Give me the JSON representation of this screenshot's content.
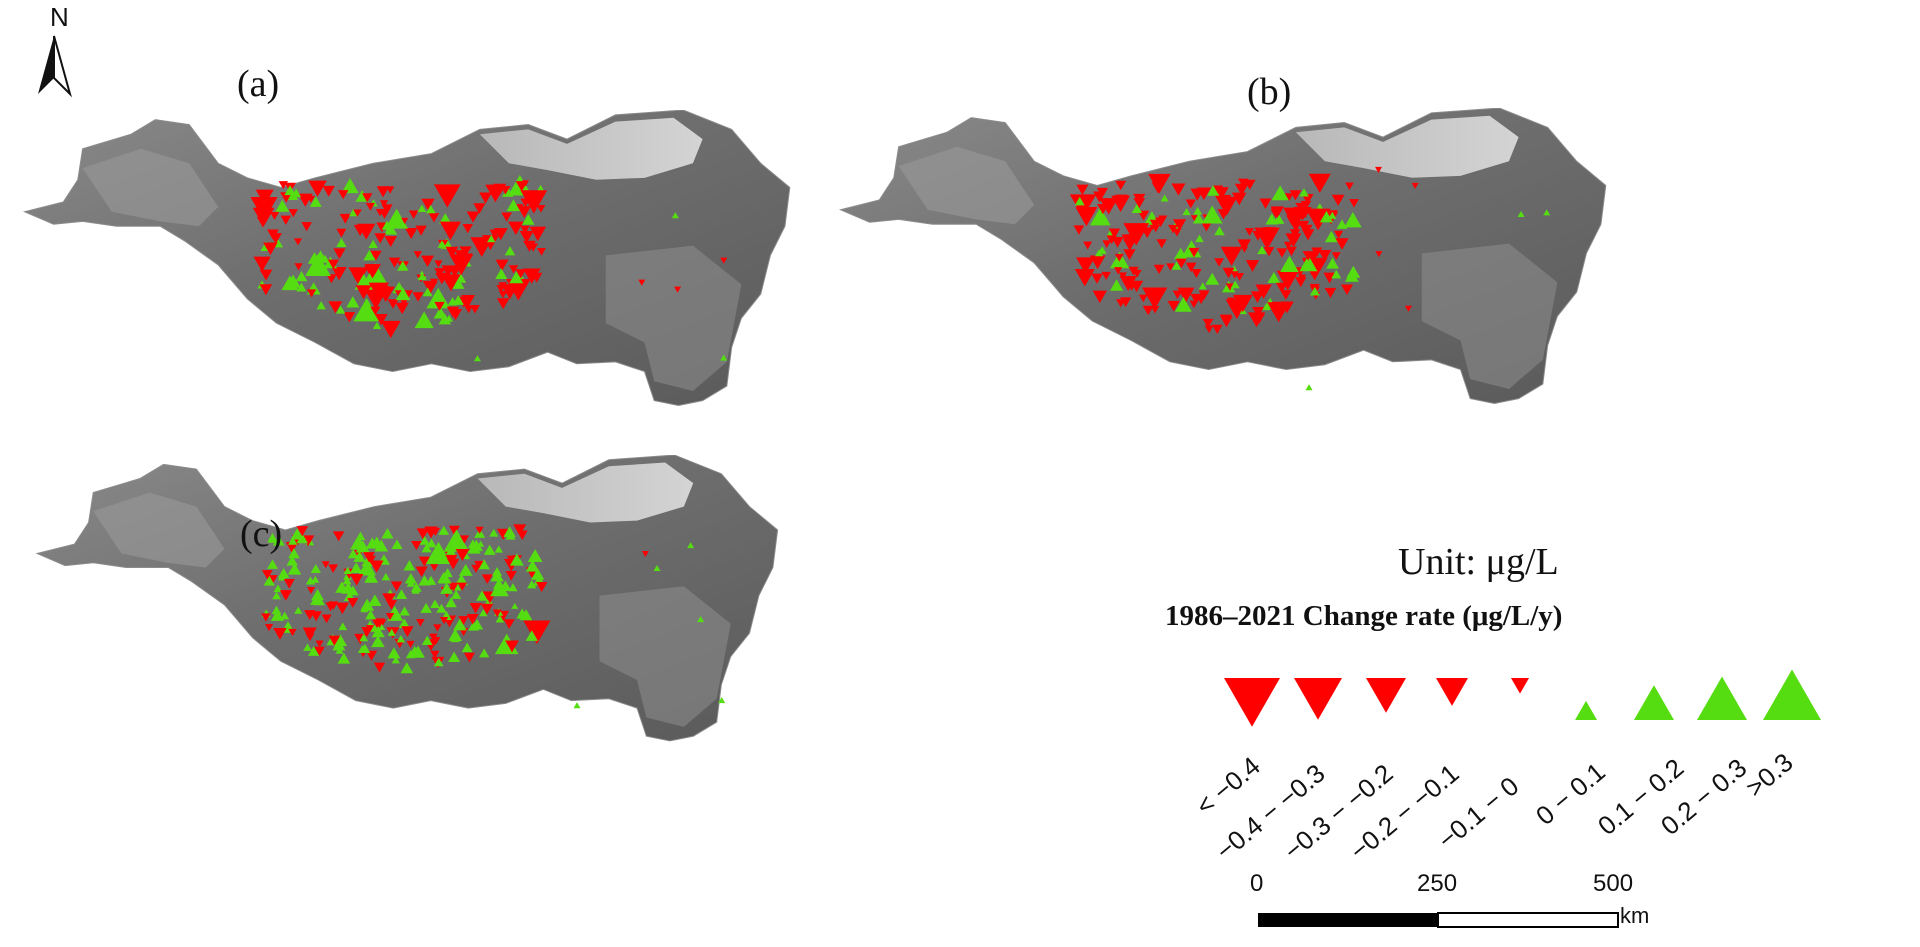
{
  "north_label": "N",
  "panels": [
    {
      "id": "a",
      "label": "(a)"
    },
    {
      "id": "b",
      "label": "(b)"
    },
    {
      "id": "c",
      "label": "(c)"
    }
  ],
  "unit": "Unit: μg/L",
  "legend": {
    "title": "1986–2021 Change rate (μg/L/y)",
    "classes": [
      {
        "label": "< −0.4",
        "direction": "decrease",
        "color": "#ff0000"
      },
      {
        "label": "−0.4 − −0.3",
        "direction": "decrease",
        "color": "#ff0000"
      },
      {
        "label": "−0.3 − −0.2",
        "direction": "decrease",
        "color": "#ff0000"
      },
      {
        "label": "−0.2 − −0.1",
        "direction": "decrease",
        "color": "#ff0000"
      },
      {
        "label": "−0.1 − 0",
        "direction": "decrease",
        "color": "#ff0000"
      },
      {
        "label": "0 − 0.1",
        "direction": "increase",
        "color": "#55dd11"
      },
      {
        "label": "0.1 − 0.2",
        "direction": "increase",
        "color": "#55dd11"
      },
      {
        "label": "0.2 − 0.3",
        "direction": "increase",
        "color": "#55dd11"
      },
      {
        "label": ">0.3",
        "direction": "increase",
        "color": "#55dd11"
      }
    ]
  },
  "scale_bar": {
    "ticks": [
      "0",
      "250",
      "500"
    ],
    "unit": "km"
  },
  "colors": {
    "decrease": "#ff0000",
    "increase": "#55dd11",
    "terrain": "#7a7a7a",
    "basin": "#c4c4c4"
  }
}
